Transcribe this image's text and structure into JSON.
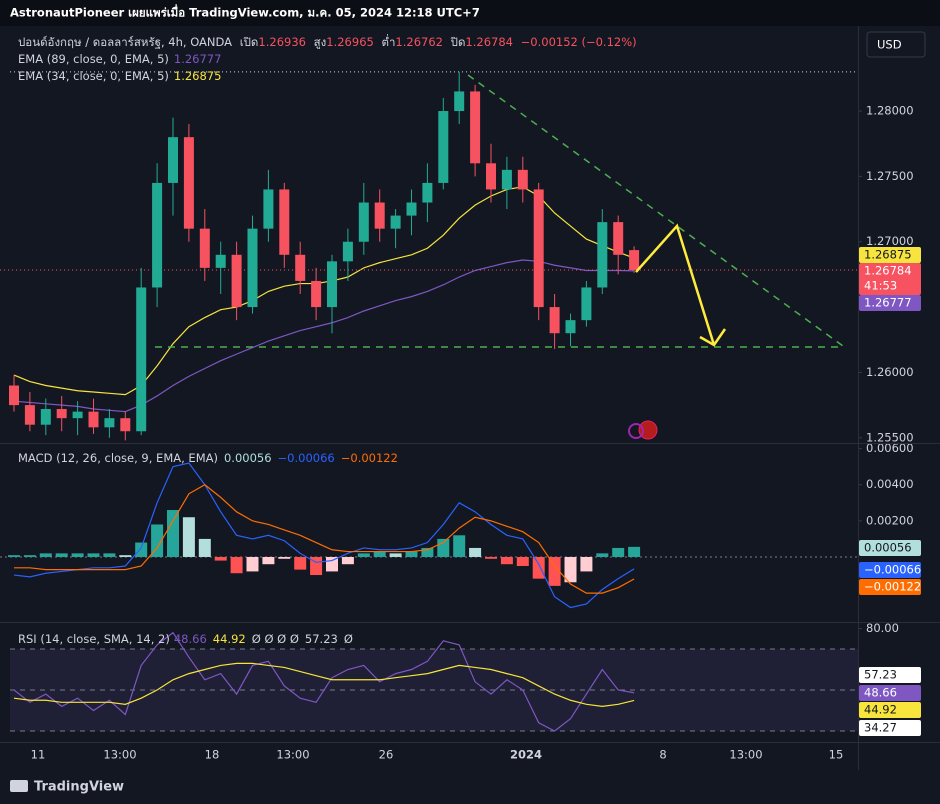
{
  "header": {
    "publisher": "AstronautPioneer เผยแพร่เมื่อ TradingView.com, ม.ค. 05, 2024 12:18 UTC+7",
    "symbol": "ปอนด์อังกฤษ / ดอลลาร์สหรัฐ, 4h, OANDA",
    "open_label": "เปิด",
    "high_label": "สูง",
    "low_label": "ต่ำ",
    "close_label": "ปิด",
    "change": "−0.00152 (−0.12%)",
    "currency": "USD",
    "countdown": "41:53",
    "brand": "TradingView"
  },
  "chart_data": [
    {
      "type": "candlestick",
      "up_color": "#22ab94",
      "down_color": "#f7525f",
      "x_labels": [
        "11",
        "13:00",
        "18",
        "13:00",
        "26",
        "2024",
        "8",
        "13:00",
        "15"
      ],
      "candles": [
        [
          1.259,
          1.2598,
          1.257,
          1.2575
        ],
        [
          1.2575,
          1.2585,
          1.2555,
          1.256
        ],
        [
          1.256,
          1.258,
          1.2552,
          1.2572
        ],
        [
          1.2572,
          1.2582,
          1.2555,
          1.2565
        ],
        [
          1.2565,
          1.2578,
          1.2552,
          1.257
        ],
        [
          1.257,
          1.258,
          1.2553,
          1.2558
        ],
        [
          1.2558,
          1.2572,
          1.255,
          1.2565
        ],
        [
          1.2565,
          1.257,
          1.2548,
          1.2555
        ],
        [
          1.2555,
          1.268,
          1.2552,
          1.2665
        ],
        [
          1.2665,
          1.276,
          1.265,
          1.2745
        ],
        [
          1.2745,
          1.2795,
          1.272,
          1.278
        ],
        [
          1.278,
          1.279,
          1.27,
          1.271
        ],
        [
          1.271,
          1.2725,
          1.267,
          1.268
        ],
        [
          1.268,
          1.27,
          1.266,
          1.269
        ],
        [
          1.269,
          1.27,
          1.264,
          1.265
        ],
        [
          1.265,
          1.272,
          1.2645,
          1.271
        ],
        [
          1.271,
          1.2755,
          1.27,
          1.274
        ],
        [
          1.274,
          1.2745,
          1.268,
          1.269
        ],
        [
          1.269,
          1.27,
          1.266,
          1.267
        ],
        [
          1.267,
          1.268,
          1.264,
          1.265
        ],
        [
          1.265,
          1.269,
          1.263,
          1.2685
        ],
        [
          1.2685,
          1.271,
          1.267,
          1.27
        ],
        [
          1.27,
          1.2745,
          1.269,
          1.273
        ],
        [
          1.273,
          1.274,
          1.27,
          1.271
        ],
        [
          1.271,
          1.2725,
          1.2695,
          1.272
        ],
        [
          1.272,
          1.274,
          1.2705,
          1.273
        ],
        [
          1.273,
          1.276,
          1.2715,
          1.2745
        ],
        [
          1.2745,
          1.281,
          1.274,
          1.28
        ],
        [
          1.28,
          1.283,
          1.279,
          1.2815
        ],
        [
          1.2815,
          1.282,
          1.275,
          1.276
        ],
        [
          1.276,
          1.2775,
          1.273,
          1.274
        ],
        [
          1.274,
          1.2765,
          1.2725,
          1.2755
        ],
        [
          1.2755,
          1.2765,
          1.273,
          1.274
        ],
        [
          1.274,
          1.2745,
          1.264,
          1.265
        ],
        [
          1.265,
          1.266,
          1.2618,
          1.263
        ],
        [
          1.263,
          1.2645,
          1.262,
          1.264
        ],
        [
          1.264,
          1.267,
          1.2635,
          1.2665
        ],
        [
          1.2665,
          1.2725,
          1.266,
          1.2715
        ],
        [
          1.2715,
          1.272,
          1.2675,
          1.269
        ],
        [
          1.26936,
          1.26965,
          1.26762,
          1.26784
        ]
      ],
      "series": [
        {
          "name": "EMA (89, close, 0, EMA, 5)",
          "color": "#7e57c2",
          "values": [
            1.2578,
            1.2577,
            1.2576,
            1.2575,
            1.2574,
            1.2572,
            1.2571,
            1.257,
            1.2575,
            1.2582,
            1.259,
            1.2597,
            1.2603,
            1.2609,
            1.2614,
            1.2619,
            1.2624,
            1.2628,
            1.2632,
            1.2635,
            1.2638,
            1.2642,
            1.2647,
            1.2651,
            1.2655,
            1.2658,
            1.2662,
            1.2667,
            1.2673,
            1.2678,
            1.2681,
            1.2684,
            1.2686,
            1.2685,
            1.2682,
            1.268,
            1.2678,
            1.2678,
            1.2678,
            1.26777
          ]
        },
        {
          "name": "EMA (34, close, 0, EMA, 5)",
          "color": "#f7e43c",
          "values": [
            1.2598,
            1.2593,
            1.259,
            1.2588,
            1.2586,
            1.2585,
            1.2584,
            1.2583,
            1.259,
            1.2605,
            1.2622,
            1.2635,
            1.2642,
            1.2648,
            1.265,
            1.2655,
            1.2662,
            1.2666,
            1.2668,
            1.2668,
            1.267,
            1.2673,
            1.268,
            1.2684,
            1.2687,
            1.269,
            1.2695,
            1.2705,
            1.2718,
            1.2728,
            1.2735,
            1.274,
            1.2742,
            1.2735,
            1.2722,
            1.2712,
            1.2702,
            1.2697,
            1.2692,
            1.26875
          ]
        }
      ],
      "ylim": [
        1.2546,
        1.2862
      ],
      "yticks": [
        {
          "value": 1.28,
          "label": "1.28000"
        },
        {
          "value": 1.275,
          "label": "1.27500"
        },
        {
          "value": 1.27,
          "label": "1.27000"
        },
        {
          "value": 1.26,
          "label": "1.26000"
        },
        {
          "value": 1.255,
          "label": "1.25500"
        }
      ]
    },
    {
      "type": "macd",
      "title": "MACD (12, 26, close, 9, EMA, EMA)",
      "histogram": [
        0.0001,
        0.0001,
        0.0002,
        0.0002,
        0.0002,
        0.0002,
        0.0002,
        0.0001,
        0.0008,
        0.0018,
        0.0026,
        0.0022,
        0.001,
        -0.0002,
        -0.0009,
        -0.0008,
        -0.0004,
        -0.0001,
        -0.0007,
        -0.001,
        -0.0008,
        -0.0004,
        0.0002,
        0.0003,
        0.0002,
        0.0003,
        0.0005,
        0.001,
        0.0012,
        0.0005,
        -0.0001,
        -0.0004,
        -0.0005,
        -0.0012,
        -0.0016,
        -0.0014,
        -0.0008,
        0.0002,
        0.0005,
        0.00056
      ],
      "hist_colors": {
        "up_rising": "#26a69a",
        "up_falling": "#b2dfdb",
        "down_falling": "#ff5252",
        "down_rising": "#ffcdd2"
      },
      "series": [
        {
          "color": "#2962ff",
          "values": [
            -0.001,
            -0.0011,
            -0.0009,
            -0.0008,
            -0.0007,
            -0.0006,
            -0.0006,
            -0.0005,
            0.0005,
            0.003,
            0.005,
            0.0052,
            0.004,
            0.0025,
            0.0012,
            0.001,
            0.0012,
            0.0009,
            0.0002,
            -0.0003,
            -0.0002,
            0.0002,
            0.0005,
            0.0004,
            0.0004,
            0.0005,
            0.0008,
            0.0018,
            0.003,
            0.0025,
            0.0018,
            0.0012,
            0.001,
            -0.0004,
            -0.0022,
            -0.0028,
            -0.0026,
            -0.0018,
            -0.0012,
            -0.00066
          ],
          "value_labels": {
            "39": "−0.00066"
          }
        },
        {
          "color": "#ff6d00",
          "values": [
            -0.0006,
            -0.0006,
            -0.0007,
            -0.0007,
            -0.0007,
            -0.0007,
            -0.0007,
            -0.0007,
            -0.0005,
            0.0005,
            0.002,
            0.0035,
            0.004,
            0.0033,
            0.0025,
            0.002,
            0.0018,
            0.0015,
            0.0012,
            0.0008,
            0.0004,
            0.0003,
            0.0003,
            0.0003,
            0.0003,
            0.0003,
            0.0004,
            0.0008,
            0.0016,
            0.0022,
            0.002,
            0.0017,
            0.0014,
            0.0008,
            -0.0005,
            -0.0015,
            -0.002,
            -0.002,
            -0.0017,
            -0.00122
          ],
          "value_labels": {
            "39": "−0.00122"
          }
        }
      ],
      "ylim": [
        -0.0036,
        0.0062
      ],
      "yticks": [
        {
          "value": 0.006,
          "label": "0.00600"
        },
        {
          "value": 0.004,
          "label": "0.00400"
        },
        {
          "value": 0.002,
          "label": "0.00200"
        }
      ]
    },
    {
      "type": "rsi",
      "title": "RSI (14, close, SMA, 14, 2)",
      "placeholders": "Ø Ø Ø Ø",
      "tail": "Ø",
      "series": [
        {
          "color": "#7e57c2",
          "values": [
            50,
            44,
            48,
            42,
            46,
            40,
            45,
            38,
            62,
            72,
            78,
            66,
            55,
            58,
            48,
            62,
            64,
            52,
            46,
            44,
            56,
            60,
            62,
            54,
            58,
            60,
            64,
            74,
            72,
            54,
            48,
            55,
            50,
            34,
            30,
            36,
            48,
            60,
            50,
            48.66
          ]
        },
        {
          "color": "#f7e43c",
          "values": [
            46,
            45,
            45,
            44,
            44,
            44,
            44,
            43,
            46,
            50,
            55,
            58,
            60,
            62,
            63,
            63,
            62,
            61,
            59,
            57,
            55,
            55,
            55,
            55,
            56,
            57,
            58,
            60,
            62,
            61,
            60,
            58,
            56,
            52,
            48,
            45,
            43,
            42,
            43,
            44.92
          ]
        }
      ],
      "upper": 57.23,
      "lower": 34.27,
      "bands": [
        70,
        50,
        30
      ],
      "ylim": [
        25.6,
        82.7
      ],
      "yticks": [
        {
          "value": 80,
          "label": "80.00"
        }
      ]
    }
  ]
}
